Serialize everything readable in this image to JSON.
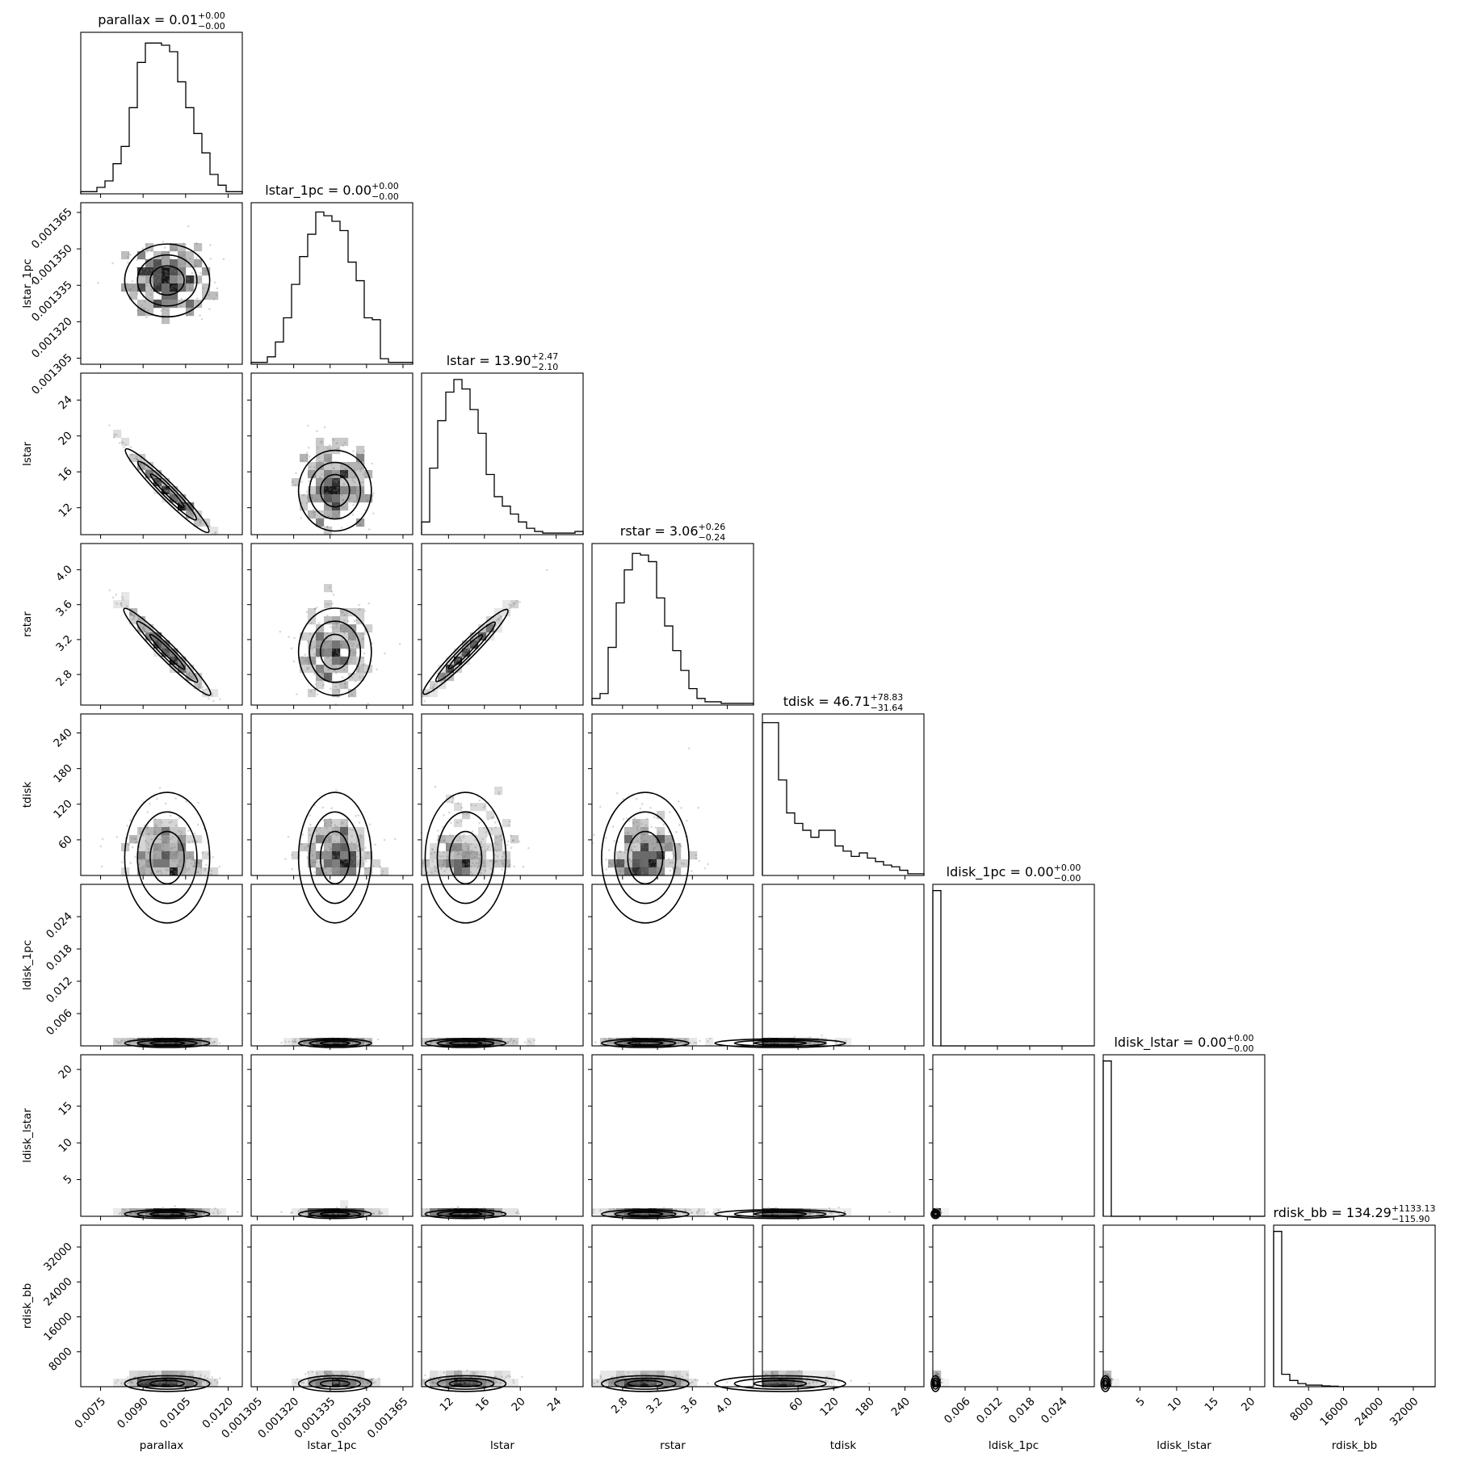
{
  "chart_data": {
    "type": "corner",
    "title": "",
    "parameters": [
      {
        "name": "parallax",
        "range": [
          0.0068,
          0.0125
        ],
        "ticks": [
          0.0075,
          0.009,
          0.0105,
          0.012
        ],
        "tick_labels": [
          "0.0075",
          "0.0090",
          "0.0105",
          "0.0120"
        ],
        "summary": {
          "label": "parallax",
          "median": "0.01",
          "plus": "+0.00",
          "minus": "−0.00"
        }
      },
      {
        "name": "lstar_1pc",
        "range": [
          0.0013025,
          0.001369
        ],
        "ticks": [
          0.001305,
          0.00132,
          0.001335,
          0.00135,
          0.001365
        ],
        "tick_labels": [
          "0.001305",
          "0.001320",
          "0.001335",
          "0.001350",
          "0.001365"
        ],
        "summary": {
          "label": "lstar_1pc",
          "median": "0.00",
          "plus": "+0.00",
          "minus": "−0.00"
        }
      },
      {
        "name": "lstar",
        "range": [
          9.0,
          27.0
        ],
        "ticks": [
          12,
          16,
          20,
          24
        ],
        "tick_labels": [
          "12",
          "16",
          "20",
          "24"
        ],
        "summary": {
          "label": "lstar",
          "median": "13.90",
          "plus": "+2.47",
          "minus": "−2.10"
        }
      },
      {
        "name": "rstar",
        "range": [
          2.45,
          4.3
        ],
        "ticks": [
          2.8,
          3.2,
          3.6,
          4.0
        ],
        "tick_labels": [
          "2.8",
          "3.2",
          "3.6",
          "4.0"
        ],
        "summary": {
          "label": "rstar",
          "median": "3.06",
          "plus": "+0.26",
          "minus": "−0.24"
        }
      },
      {
        "name": "tdisk",
        "range": [
          0,
          272
        ],
        "ticks": [
          60,
          120,
          180,
          240
        ],
        "tick_labels": [
          "60",
          "120",
          "180",
          "240"
        ],
        "summary": {
          "label": "tdisk",
          "median": "46.71",
          "plus": "+78.83",
          "minus": "−31.64"
        }
      },
      {
        "name": "ldisk_1pc",
        "range": [
          0,
          0.03
        ],
        "ticks": [
          0.006,
          0.012,
          0.018,
          0.024
        ],
        "tick_labels": [
          "0.006",
          "0.012",
          "0.018",
          "0.024"
        ],
        "summary": {
          "label": "ldisk_1pc",
          "median": "0.00",
          "plus": "+0.00",
          "minus": "−0.00"
        }
      },
      {
        "name": "ldisk_lstar",
        "range": [
          0,
          22
        ],
        "ticks": [
          5,
          10,
          15,
          20
        ],
        "tick_labels": [
          "5",
          "10",
          "15",
          "20"
        ],
        "summary": {
          "label": "ldisk_lstar",
          "median": "0.00",
          "plus": "+0.00",
          "minus": "−0.00"
        }
      },
      {
        "name": "rdisk_bb",
        "range": [
          0,
          37000
        ],
        "ticks": [
          8000,
          16000,
          24000,
          32000
        ],
        "tick_labels": [
          "8000",
          "16000",
          "24000",
          "32000"
        ],
        "summary": {
          "label": "rdisk_bb",
          "median": "134.29",
          "plus": "+1133.13",
          "minus": "−115.90"
        }
      }
    ],
    "histograms": [
      [
        1,
        1,
        3,
        6,
        14,
        22,
        40,
        61,
        70,
        70,
        69,
        66,
        52,
        40,
        28,
        19,
        9,
        4,
        1,
        1
      ],
      [
        1,
        1,
        4,
        12,
        25,
        43,
        58,
        70,
        82,
        80,
        77,
        72,
        55,
        45,
        25,
        24,
        3,
        1,
        1,
        1
      ],
      [
        8,
        42,
        72,
        90,
        98,
        92,
        79,
        64,
        38,
        24,
        18,
        13,
        8,
        4,
        2,
        1,
        1,
        1,
        1,
        2
      ],
      [
        4,
        7,
        35,
        62,
        82,
        92,
        91,
        87,
        65,
        48,
        33,
        21,
        10,
        4,
        2,
        2,
        1,
        1,
        1,
        1
      ],
      [
        88,
        88,
        55,
        36,
        30,
        26,
        22,
        26,
        26,
        17,
        14,
        11,
        13,
        10,
        8,
        6,
        5,
        3,
        1,
        1
      ],
      [
        100,
        0,
        0,
        0,
        0,
        0,
        0,
        0,
        0,
        0,
        0,
        0,
        0,
        0,
        0,
        0,
        0,
        0,
        0,
        0
      ],
      [
        100,
        0,
        0,
        0,
        0,
        0,
        0,
        0,
        0,
        0,
        0,
        0,
        0,
        0,
        0,
        0,
        0,
        0,
        0,
        0
      ],
      [
        100,
        8,
        4,
        2,
        1,
        1,
        0.5,
        0.3,
        0,
        0,
        0,
        0,
        0,
        0,
        0,
        0,
        0,
        0,
        0,
        0
      ]
    ],
    "hist_ymax": [
      75,
      87,
      102,
      98,
      93,
      104,
      104,
      104
    ],
    "distributions": [
      {
        "center": 0.00985,
        "sd": 0.00075,
        "skew": 0,
        "log": false
      },
      {
        "center": 0.001337,
        "sd": 7.5e-06,
        "skew": 0,
        "log": false
      },
      {
        "center": 13.9,
        "sd": 2.25,
        "skew": 0.25,
        "log": false
      },
      {
        "center": 3.06,
        "sd": 0.25,
        "skew": 0.1,
        "log": false
      },
      {
        "center": 18,
        "sd": 45,
        "skew": 0,
        "log": false,
        "exp_scale": 55
      },
      {
        "center": 0.0005,
        "sd": 0.0004,
        "skew": 0,
        "log": false
      },
      {
        "center": 0.3,
        "sd": 0.3,
        "skew": 0,
        "log": false
      },
      {
        "center": 700,
        "sd": 900,
        "skew": 0,
        "log": false
      }
    ],
    "correlations": {
      "2_0": -0.995,
      "3_0": -0.99,
      "3_2": 0.995
    }
  }
}
